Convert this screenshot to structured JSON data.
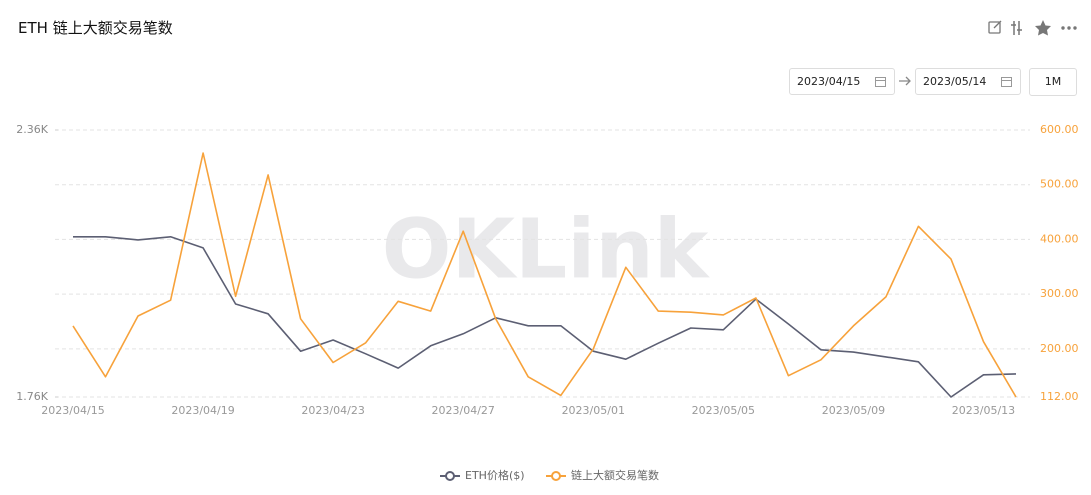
{
  "controls": {
    "start_date": "2023/04/15",
    "end_date": "2023/05/14",
    "range_button": "1M"
  },
  "chart_data": {
    "type": "line",
    "title": "ETH 链上大额交易笔数",
    "watermark": "OKLink",
    "categories": [
      "2023/04/15",
      null,
      null,
      null,
      "2023/04/19",
      null,
      null,
      null,
      "2023/04/23",
      null,
      null,
      null,
      "2023/04/27",
      null,
      null,
      null,
      "2023/05/01",
      null,
      null,
      null,
      "2023/05/05",
      null,
      null,
      null,
      "2023/05/09",
      null,
      null,
      null,
      "2023/05/13",
      null
    ],
    "series": [
      {
        "name": "ETH价格($)",
        "color": "#5c5f73",
        "values": [
          2120,
          2120,
          2113,
          2120,
          2095,
          1969,
          1947,
          1863,
          1888,
          1857,
          1825,
          1875,
          1902,
          1938,
          1920,
          1920,
          1863,
          1845,
          1881,
          1915,
          1911,
          1980,
          1924,
          1866,
          1861,
          1850,
          1839,
          1760,
          1810,
          1812
        ]
      },
      {
        "name": "链上大额交易笔数",
        "color": "#f7a23b",
        "axis": "y2",
        "values": [
          242,
          149,
          260,
          289,
          558,
          296,
          518,
          255,
          175,
          211,
          287,
          269,
          415,
          255,
          149,
          115,
          200,
          349,
          269,
          267,
          262,
          293,
          151,
          180,
          242,
          295,
          424,
          364,
          213,
          112
        ]
      }
    ],
    "ylim": [
      1760,
      2360
    ],
    "yticks": [
      {
        "value": 1760,
        "label": "1.76K"
      },
      {
        "value": 2360,
        "label": "2.36K"
      }
    ],
    "y2lim": [
      112,
      600
    ],
    "y2ticks": [
      {
        "value": 112,
        "label": "112.00"
      },
      {
        "value": 200,
        "label": "200.00"
      },
      {
        "value": 300,
        "label": "300.00"
      },
      {
        "value": 400,
        "label": "400.00"
      },
      {
        "value": 500,
        "label": "500.00"
      },
      {
        "value": 600,
        "label": "600.00"
      }
    ],
    "grid": true
  }
}
